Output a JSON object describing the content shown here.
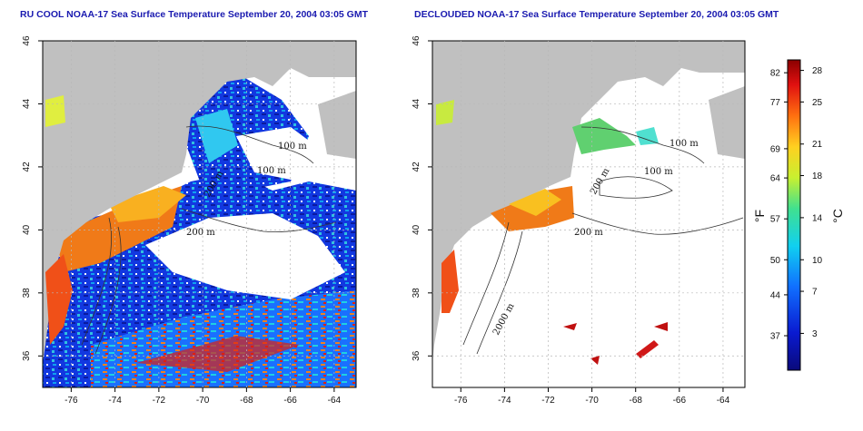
{
  "titles": {
    "left": "RU COOL NOAA-17 Sea Surface Temperature September 20, 2004 03:05 GMT",
    "right": "DECLOUDED NOAA-17 Sea Surface Temperature September 20, 2004 03:05 GMT"
  },
  "axes": {
    "lon_ticks": [
      "-76",
      "-74",
      "-72",
      "-70",
      "-68",
      "-66",
      "-64"
    ],
    "lon_values": [
      -76,
      -74,
      -72,
      -70,
      -68,
      -66,
      -64
    ],
    "lat_ticks": [
      "36",
      "38",
      "40",
      "42",
      "44",
      "46"
    ],
    "lat_values": [
      36,
      38,
      40,
      42,
      44,
      46
    ],
    "lon_range": [
      -77.3,
      -63.0
    ],
    "lat_range": [
      35.0,
      46.0
    ]
  },
  "contours": {
    "left": [
      "100 m",
      "100 m",
      "200 m",
      "200 m"
    ],
    "right": [
      "100 m",
      "100 m",
      "200 m",
      "200 m",
      "2000 m"
    ]
  },
  "colorbar": {
    "f_ticks": [
      "82",
      "77",
      "69",
      "64",
      "57",
      "50",
      "44",
      "37"
    ],
    "f_values": [
      82,
      77,
      69,
      64,
      57,
      50,
      44,
      37
    ],
    "c_ticks": [
      "28",
      "25",
      "21",
      "18",
      "14",
      "10",
      "7",
      "3"
    ],
    "c_values": [
      28,
      25,
      21,
      18,
      14,
      10,
      7,
      3
    ],
    "f_unit": "°F",
    "c_unit": "°C",
    "range_c": [
      -0.5,
      29.0
    ]
  },
  "colors": {
    "land": "#c0c0c0",
    "cloud": "#ffffff",
    "grid": "#b8b8b8"
  }
}
